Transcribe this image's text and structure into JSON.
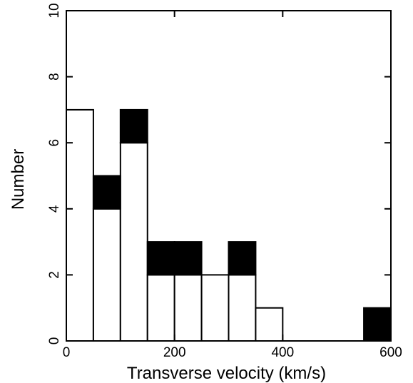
{
  "chart_data": {
    "type": "bar",
    "subtype": "stacked-histogram",
    "title": "",
    "xlabel": "Transverse velocity (km/s)",
    "ylabel": "Number",
    "xlim": [
      0,
      600
    ],
    "ylim": [
      0,
      10
    ],
    "xticks": [
      0,
      200,
      400,
      600
    ],
    "xtick_labels": [
      "0",
      "200",
      "400",
      "600"
    ],
    "yticks": [
      0,
      2,
      4,
      6,
      8,
      10
    ],
    "ytick_labels": [
      "0",
      "2",
      "4",
      "6",
      "8",
      "10"
    ],
    "grid": false,
    "legend": "none",
    "bin_edges": [
      0,
      50,
      100,
      150,
      200,
      250,
      300,
      350,
      400,
      450,
      500,
      550,
      600
    ],
    "series": [
      {
        "fill": "#ffffff",
        "values": [
          7,
          4,
          6,
          2,
          2,
          2,
          2,
          1,
          0,
          0,
          0,
          0
        ]
      },
      {
        "fill": "#000000",
        "values": [
          0,
          1,
          1,
          1,
          1,
          0,
          1,
          0,
          0,
          0,
          0,
          1
        ]
      }
    ]
  }
}
